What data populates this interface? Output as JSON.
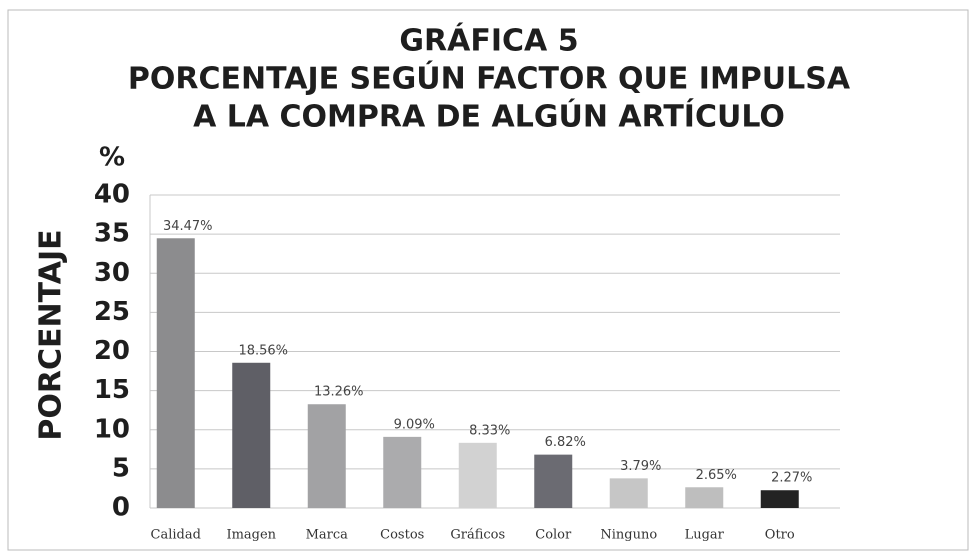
{
  "chart_data": {
    "type": "bar",
    "title": [
      "GRÁFICA 5",
      "PORCENTAJE SEGÚN FACTOR QUE IMPULSA",
      "A LA COMPRA DE ALGÚN ARTÍCULO"
    ],
    "y_label": "PORCENTAJE",
    "y_unit": "%",
    "categories": [
      "Calidad",
      "Imagen",
      "Marca",
      "Costos",
      "Gráficos",
      "Color",
      "Ninguno",
      "Lugar",
      "Otro"
    ],
    "values": [
      34.47,
      18.56,
      13.26,
      9.09,
      8.33,
      6.82,
      3.79,
      2.65,
      2.27
    ],
    "value_labels": [
      "34.47%",
      "18.56%",
      "13.26%",
      "9.09%",
      "8.33%",
      "6.82%",
      "3.79%",
      "2.65%",
      "2.27%"
    ],
    "colors": [
      "#8c8c8e",
      "#5f5f66",
      "#a2a2a4",
      "#ababad",
      "#d2d2d2",
      "#6b6b72",
      "#c6c6c6",
      "#bebebe",
      "#232323"
    ],
    "ylim": [
      0,
      40
    ],
    "yticks": [
      0,
      5,
      10,
      15,
      20,
      25,
      30,
      35,
      40
    ],
    "grid": true
  }
}
